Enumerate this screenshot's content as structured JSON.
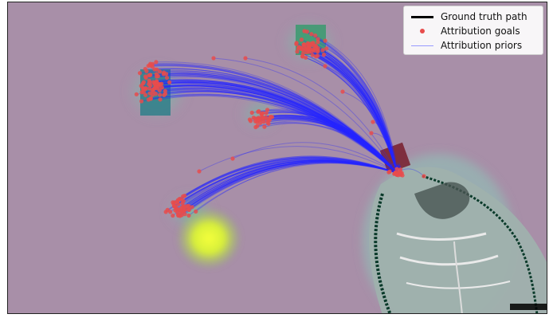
{
  "legend": {
    "items": [
      {
        "label": "Ground truth path",
        "symbol": "thick-black-line",
        "color": "#000000"
      },
      {
        "label": "Attribution goals",
        "symbol": "red-dot",
        "color": "#e74c4c"
      },
      {
        "label": "Attribution priors",
        "symbol": "thin-blue-line",
        "color": "#7f83ff"
      }
    ]
  },
  "colors": {
    "background": "#a88fa8",
    "goals": "#e74c4c",
    "priors": "#2020ff",
    "path": "#000000"
  }
}
